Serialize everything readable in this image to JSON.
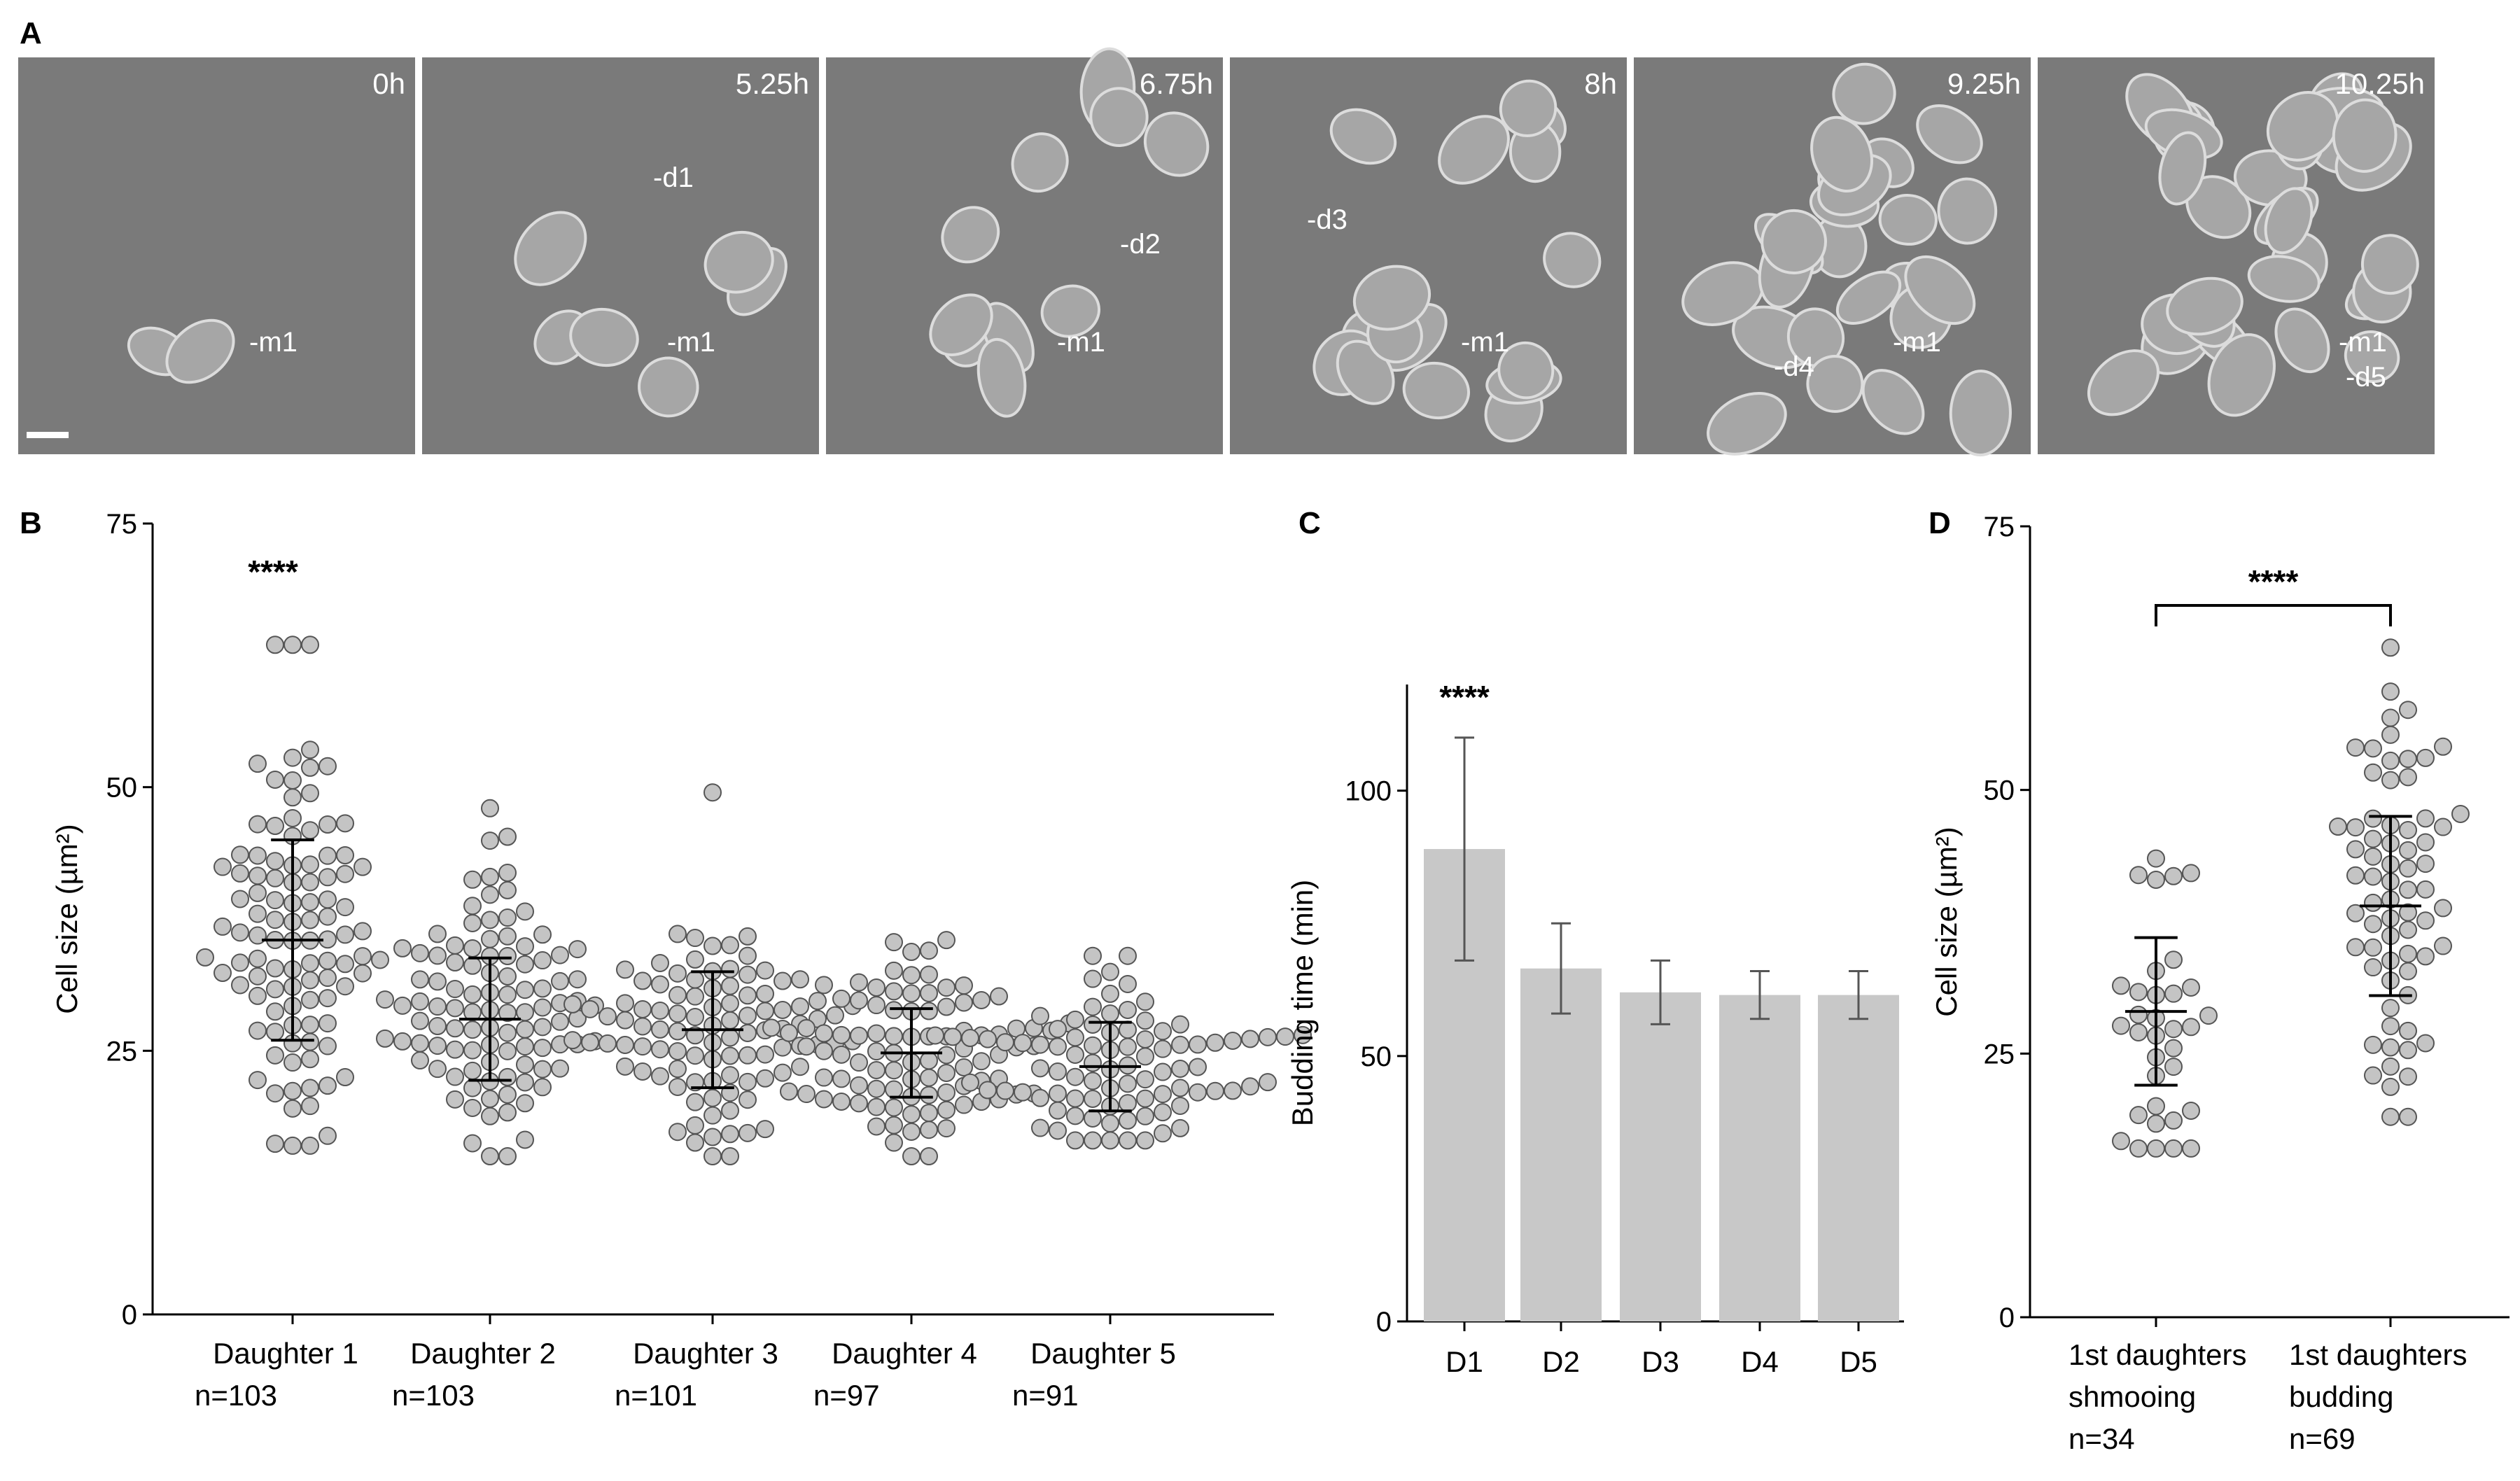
{
  "panels": {
    "A": "A",
    "B": "B",
    "C": "C",
    "D": "D"
  },
  "micrographs": [
    {
      "time": "0h",
      "labels": [
        "m1"
      ]
    },
    {
      "time": "5.25h",
      "labels": [
        "d1",
        "m1"
      ]
    },
    {
      "time": "6.75h",
      "labels": [
        "d2",
        "m1"
      ]
    },
    {
      "time": "8h",
      "labels": [
        "d3",
        "m1"
      ]
    },
    {
      "time": "9.25h",
      "labels": [
        "d4",
        "m1"
      ]
    },
    {
      "time": "10.25h",
      "labels": [
        "m1",
        "d5"
      ]
    }
  ],
  "colors": {
    "dot_fill": "#c4c4c4",
    "dot_stroke": "#555555",
    "bar_fill": "#c8c8c8",
    "micrograph_bg": "#7a7a7a",
    "cell_fill": "#a6a6a6"
  },
  "chart_data": [
    {
      "panel": "B",
      "type": "scatter",
      "ylabel": "Cell size (µm²)",
      "ylim": [
        0,
        75
      ],
      "yticks": [
        0,
        25,
        50,
        75
      ],
      "categories": [
        "Daughter 1",
        "Daughter 2",
        "Daughter 3",
        "Daughter 4",
        "Daughter 5"
      ],
      "n_labels": [
        "n=103",
        "n=103",
        "n=101",
        "n=97",
        "n=91"
      ],
      "mean": [
        35.5,
        28,
        27,
        24.8,
        23.5
      ],
      "sd": [
        9.5,
        5.8,
        5.5,
        4.2,
        4.2
      ],
      "max": [
        63.5,
        48,
        49.5,
        35.5,
        34
      ],
      "min": [
        16,
        15,
        15,
        15,
        16.5
      ],
      "annotation": "****"
    },
    {
      "panel": "C",
      "type": "bar",
      "ylabel": "Budding time (min)",
      "ylim": [
        0,
        120
      ],
      "yticks": [
        0,
        50,
        100
      ],
      "categories": [
        "D1",
        "D2",
        "D3",
        "D4",
        "D5"
      ],
      "values": [
        89,
        66.5,
        62,
        61.5,
        61.5
      ],
      "error": [
        21,
        8.5,
        6,
        4.5,
        4.5
      ],
      "annotation": "****"
    },
    {
      "panel": "D",
      "type": "scatter",
      "ylabel": "Cell size (µm²)",
      "ylim": [
        0,
        75
      ],
      "yticks": [
        0,
        25,
        50,
        75
      ],
      "categories": [
        {
          "line1": "1st daughters",
          "line2": "shmooing",
          "line3": "n=34"
        },
        {
          "line1": "1st daughters",
          "line2": "budding",
          "line3": "n=69"
        }
      ],
      "mean": [
        29,
        39
      ],
      "sd": [
        7,
        8.5
      ],
      "max": [
        43.5,
        63.5
      ],
      "min": [
        16,
        19
      ],
      "counts": [
        34,
        69
      ],
      "annotation": "****"
    }
  ]
}
